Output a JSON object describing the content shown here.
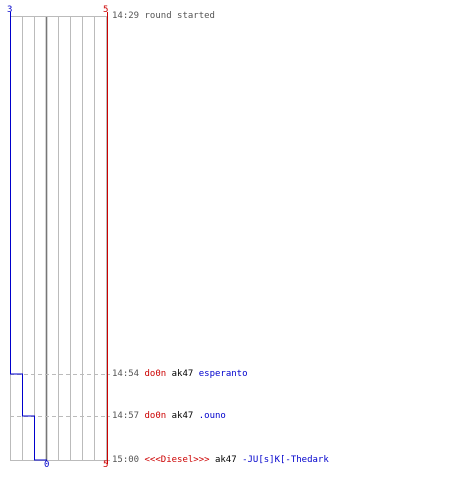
{
  "colors": {
    "team_blue": "#0000cc",
    "team_red": "#cc0000",
    "grid": "#bbbbbb",
    "grid_center": "#777777",
    "dash": "#bbbbbb",
    "text_gray": "#555555"
  },
  "scores": {
    "blue_start": "3",
    "red_start": "5",
    "blue_end": "0",
    "red_end": "5"
  },
  "chart_data": {
    "type": "line",
    "series": [
      {
        "color": "#0000cc",
        "points": [
          {
            "time": "14:29",
            "score": 3
          },
          {
            "time": "14:54",
            "score": 2
          },
          {
            "time": "14:57",
            "score": 1
          },
          {
            "time": "15:00",
            "score": 0
          }
        ]
      },
      {
        "color": "#cc0000",
        "points": [
          {
            "time": "14:29",
            "score": 5
          },
          {
            "time": "15:00",
            "score": 5
          }
        ]
      }
    ],
    "x_range": [
      0,
      5
    ],
    "y_range": [
      "14:29",
      "15:00"
    ]
  },
  "events": [
    {
      "time": "14:29",
      "text": "round started"
    },
    {
      "time": "14:54",
      "killer": "do0n",
      "weapon": "ak47",
      "victim": "esperanto"
    },
    {
      "time": "14:57",
      "killer": "do0n",
      "weapon": "ak47",
      "victim": ".ouno"
    },
    {
      "time": "15:00",
      "killer": "<<<Diesel>>>",
      "weapon": "ak47",
      "victim": "-JU[s]K[-Thedark"
    }
  ]
}
